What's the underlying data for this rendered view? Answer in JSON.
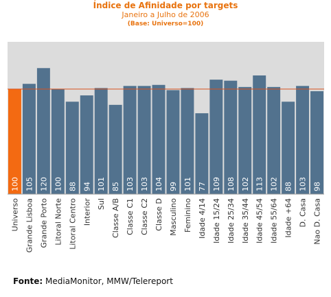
{
  "header": {
    "title": "Índice de Afinidade por targets",
    "subtitle": "Janeiro a Julho de 2006",
    "note": "(Base: Universo=100)"
  },
  "colors": {
    "accent": "#E8730F",
    "bar": "#52728E",
    "highlight_bar": "#F36A12",
    "plot_bg": "#DCDCDC",
    "reference_line": "#D9531E"
  },
  "chart_data": {
    "type": "bar",
    "title": "Índice de Afinidade por targets",
    "subtitle": "Janeiro a Julho de 2006",
    "note": "(Base: Universo=100)",
    "categories": [
      "Universo",
      "Grande Lisboa",
      "Grande Porto",
      "Litoral Norte",
      "Litoral Centro",
      "Interior",
      "Sul",
      "Classe A/B",
      "Classe C1",
      "Classe C2",
      "Classe D",
      "Masculino",
      "Feminino",
      "Idade 4/14",
      "Idade 15/24",
      "Idade 25/34",
      "Idade 35/44",
      "Idade 45/54",
      "Idade 55/64",
      "Idade +64",
      "D. Casa",
      "Nao D. Casa"
    ],
    "values": [
      100,
      105,
      120,
      100,
      88,
      94,
      101,
      85,
      103,
      103,
      104,
      99,
      101,
      77,
      109,
      108,
      102,
      113,
      102,
      88,
      103,
      98
    ],
    "highlight": "Universo",
    "reference_line": 100,
    "ylim": [
      0,
      145
    ],
    "grid": false,
    "data_labels": "inside-bar-rotated"
  },
  "footer": {
    "source_label": "Fonte:",
    "source_text": "MediaMonitor, MMW/Telereport"
  }
}
